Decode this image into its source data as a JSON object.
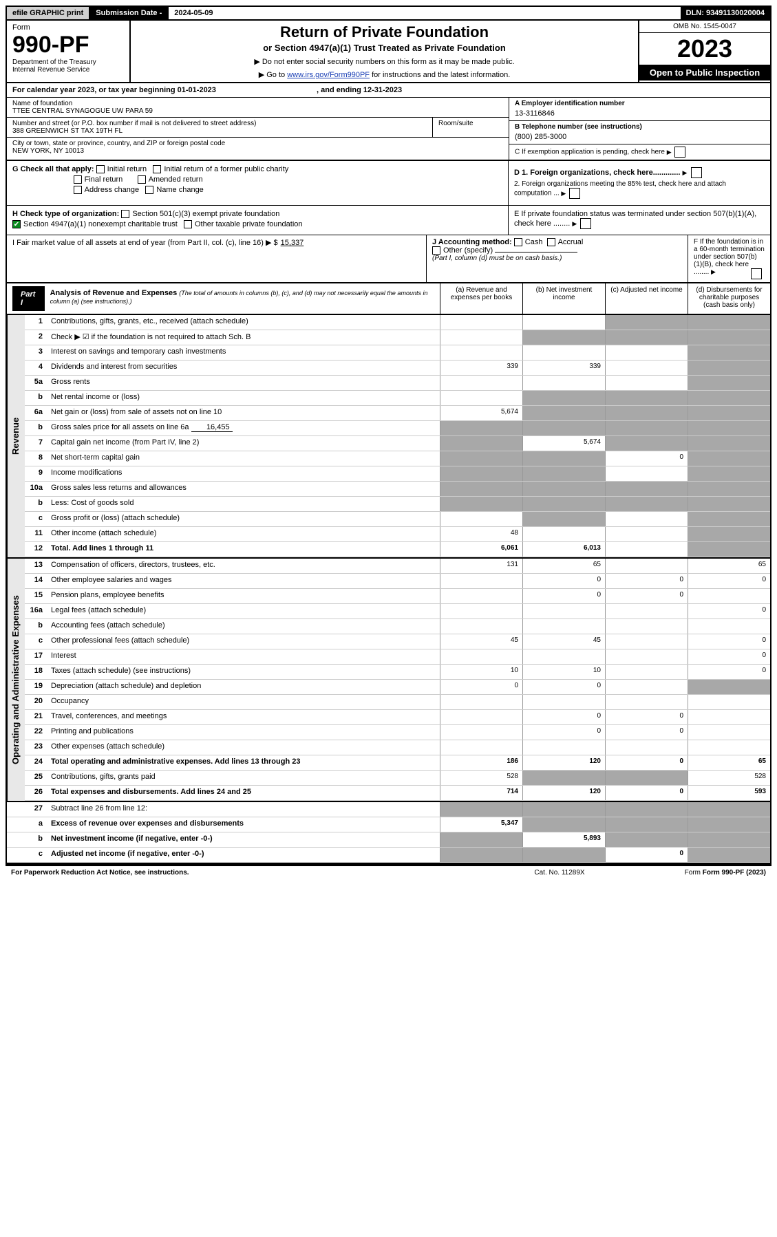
{
  "topbar": {
    "efile": "efile GRAPHIC print",
    "sub_label": "Submission Date - ",
    "sub_date": "2024-05-09",
    "dln": "DLN: 93491130020004"
  },
  "header": {
    "form_word": "Form",
    "form_no": "990-PF",
    "dept": "Department of the Treasury",
    "irs": "Internal Revenue Service",
    "title": "Return of Private Foundation",
    "subtitle": "or Section 4947(a)(1) Trust Treated as Private Foundation",
    "note1": "▶ Do not enter social security numbers on this form as it may be made public.",
    "note2_pre": "▶ Go to ",
    "note2_link": "www.irs.gov/Form990PF",
    "note2_post": " for instructions and the latest information.",
    "omb": "OMB No. 1545-0047",
    "year": "2023",
    "open": "Open to Public Inspection"
  },
  "cal": {
    "line": "For calendar year 2023, or tax year beginning 01-01-2023",
    "end": ", and ending 12-31-2023"
  },
  "entity": {
    "name_lbl": "Name of foundation",
    "name": "TTEE CENTRAL SYNAGOGUE UW PARA 59",
    "addr_lbl": "Number and street (or P.O. box number if mail is not delivered to street address)",
    "addr": "388 GREENWICH ST TAX 19TH FL",
    "room_lbl": "Room/suite",
    "city_lbl": "City or town, state or province, country, and ZIP or foreign postal code",
    "city": "NEW YORK, NY  10013",
    "A_lbl": "A Employer identification number",
    "A_val": "13-3116846",
    "B_lbl": "B Telephone number (see instructions)",
    "B_val": "(800) 285-3000",
    "C_lbl": "C If exemption application is pending, check here"
  },
  "checks": {
    "G": "G Check all that apply:",
    "G_items": [
      "Initial return",
      "Initial return of a former public charity",
      "Final return",
      "Amended return",
      "Address change",
      "Name change"
    ],
    "H": "H Check type of organization:",
    "H1": "Section 501(c)(3) exempt private foundation",
    "H2": "Section 4947(a)(1) nonexempt charitable trust",
    "H3": "Other taxable private foundation",
    "I": "I Fair market value of all assets at end of year (from Part II, col. (c), line 16) ▶ $",
    "I_val": "15,337",
    "J": "J Accounting method:",
    "J_items": [
      "Cash",
      "Accrual",
      "Other (specify)"
    ],
    "J_note": "(Part I, column (d) must be on cash basis.)",
    "D1": "D 1. Foreign organizations, check here.............",
    "D2": "2. Foreign organizations meeting the 85% test, check here and attach computation ...",
    "E": "E If private foundation status was terminated under section 507(b)(1)(A), check here ........",
    "F": "F If the foundation is in a 60-month termination under section 507(b)(1)(B), check here ........"
  },
  "part1": {
    "label": "Part I",
    "title": "Analysis of Revenue and Expenses",
    "sub": "(The total of amounts in columns (b), (c), and (d) may not necessarily equal the amounts in column (a) (see instructions).)",
    "cols": [
      "(a) Revenue and expenses per books",
      "(b) Net investment income",
      "(c) Adjusted net income",
      "(d) Disbursements for charitable purposes (cash basis only)"
    ]
  },
  "side": {
    "rev": "Revenue",
    "exp": "Operating and Administrative Expenses"
  },
  "rows": [
    {
      "n": "1",
      "d": "Contributions, gifts, grants, etc., received (attach schedule)",
      "a": "",
      "b": "",
      "c": "shade",
      "dd": "shade"
    },
    {
      "n": "2",
      "d": "Check ▶ ☑ if the foundation is not required to attach Sch. B",
      "a": "",
      "b": "shade",
      "c": "shade",
      "dd": "shade"
    },
    {
      "n": "3",
      "d": "Interest on savings and temporary cash investments",
      "a": "",
      "b": "",
      "c": "",
      "dd": "shade"
    },
    {
      "n": "4",
      "d": "Dividends and interest from securities",
      "a": "339",
      "b": "339",
      "c": "",
      "dd": "shade"
    },
    {
      "n": "5a",
      "d": "Gross rents",
      "a": "",
      "b": "",
      "c": "",
      "dd": "shade"
    },
    {
      "n": "b",
      "d": "Net rental income or (loss)",
      "a": "",
      "b": "shade",
      "c": "shade",
      "dd": "shade"
    },
    {
      "n": "6a",
      "d": "Net gain or (loss) from sale of assets not on line 10",
      "a": "5,674",
      "b": "shade",
      "c": "shade",
      "dd": "shade"
    },
    {
      "n": "b",
      "d": "Gross sales price for all assets on line 6a",
      "v": "16,455",
      "a": "shade",
      "b": "shade",
      "c": "shade",
      "dd": "shade"
    },
    {
      "n": "7",
      "d": "Capital gain net income (from Part IV, line 2)",
      "a": "shade",
      "b": "5,674",
      "c": "shade",
      "dd": "shade"
    },
    {
      "n": "8",
      "d": "Net short-term capital gain",
      "a": "shade",
      "b": "shade",
      "c": "0",
      "dd": "shade"
    },
    {
      "n": "9",
      "d": "Income modifications",
      "a": "shade",
      "b": "shade",
      "c": "",
      "dd": "shade"
    },
    {
      "n": "10a",
      "d": "Gross sales less returns and allowances",
      "a": "shade",
      "b": "shade",
      "c": "shade",
      "dd": "shade"
    },
    {
      "n": "b",
      "d": "Less: Cost of goods sold",
      "a": "shade",
      "b": "shade",
      "c": "shade",
      "dd": "shade"
    },
    {
      "n": "c",
      "d": "Gross profit or (loss) (attach schedule)",
      "a": "",
      "b": "shade",
      "c": "",
      "dd": "shade"
    },
    {
      "n": "11",
      "d": "Other income (attach schedule)",
      "a": "48",
      "b": "",
      "c": "",
      "dd": "shade"
    },
    {
      "n": "12",
      "d": "Total. Add lines 1 through 11",
      "a": "6,061",
      "b": "6,013",
      "c": "",
      "dd": "shade",
      "bold": true
    }
  ],
  "erows": [
    {
      "n": "13",
      "d": "Compensation of officers, directors, trustees, etc.",
      "a": "131",
      "b": "65",
      "c": "",
      "dd": "65"
    },
    {
      "n": "14",
      "d": "Other employee salaries and wages",
      "a": "",
      "b": "0",
      "c": "0",
      "dd": "0"
    },
    {
      "n": "15",
      "d": "Pension plans, employee benefits",
      "a": "",
      "b": "0",
      "c": "0",
      "dd": ""
    },
    {
      "n": "16a",
      "d": "Legal fees (attach schedule)",
      "a": "",
      "b": "",
      "c": "",
      "dd": "0"
    },
    {
      "n": "b",
      "d": "Accounting fees (attach schedule)",
      "a": "",
      "b": "",
      "c": "",
      "dd": ""
    },
    {
      "n": "c",
      "d": "Other professional fees (attach schedule)",
      "a": "45",
      "b": "45",
      "c": "",
      "dd": "0"
    },
    {
      "n": "17",
      "d": "Interest",
      "a": "",
      "b": "",
      "c": "",
      "dd": "0"
    },
    {
      "n": "18",
      "d": "Taxes (attach schedule) (see instructions)",
      "a": "10",
      "b": "10",
      "c": "",
      "dd": "0"
    },
    {
      "n": "19",
      "d": "Depreciation (attach schedule) and depletion",
      "a": "0",
      "b": "0",
      "c": "",
      "dd": "shade"
    },
    {
      "n": "20",
      "d": "Occupancy",
      "a": "",
      "b": "",
      "c": "",
      "dd": ""
    },
    {
      "n": "21",
      "d": "Travel, conferences, and meetings",
      "a": "",
      "b": "0",
      "c": "0",
      "dd": ""
    },
    {
      "n": "22",
      "d": "Printing and publications",
      "a": "",
      "b": "0",
      "c": "0",
      "dd": ""
    },
    {
      "n": "23",
      "d": "Other expenses (attach schedule)",
      "a": "",
      "b": "",
      "c": "",
      "dd": ""
    },
    {
      "n": "24",
      "d": "Total operating and administrative expenses. Add lines 13 through 23",
      "a": "186",
      "b": "120",
      "c": "0",
      "dd": "65",
      "bold": true
    },
    {
      "n": "25",
      "d": "Contributions, gifts, grants paid",
      "a": "528",
      "b": "shade",
      "c": "shade",
      "dd": "528"
    },
    {
      "n": "26",
      "d": "Total expenses and disbursements. Add lines 24 and 25",
      "a": "714",
      "b": "120",
      "c": "0",
      "dd": "593",
      "bold": true
    }
  ],
  "frows": [
    {
      "n": "27",
      "d": "Subtract line 26 from line 12:",
      "a": "shade",
      "b": "shade",
      "c": "shade",
      "dd": "shade"
    },
    {
      "n": "a",
      "d": "Excess of revenue over expenses and disbursements",
      "a": "5,347",
      "b": "shade",
      "c": "shade",
      "dd": "shade",
      "bold": true
    },
    {
      "n": "b",
      "d": "Net investment income (if negative, enter -0-)",
      "a": "shade",
      "b": "5,893",
      "c": "shade",
      "dd": "shade",
      "bold": true
    },
    {
      "n": "c",
      "d": "Adjusted net income (if negative, enter -0-)",
      "a": "shade",
      "b": "shade",
      "c": "0",
      "dd": "shade",
      "bold": true
    }
  ],
  "footer": {
    "left": "For Paperwork Reduction Act Notice, see instructions.",
    "center": "Cat. No. 11289X",
    "right": "Form 990-PF (2023)"
  }
}
